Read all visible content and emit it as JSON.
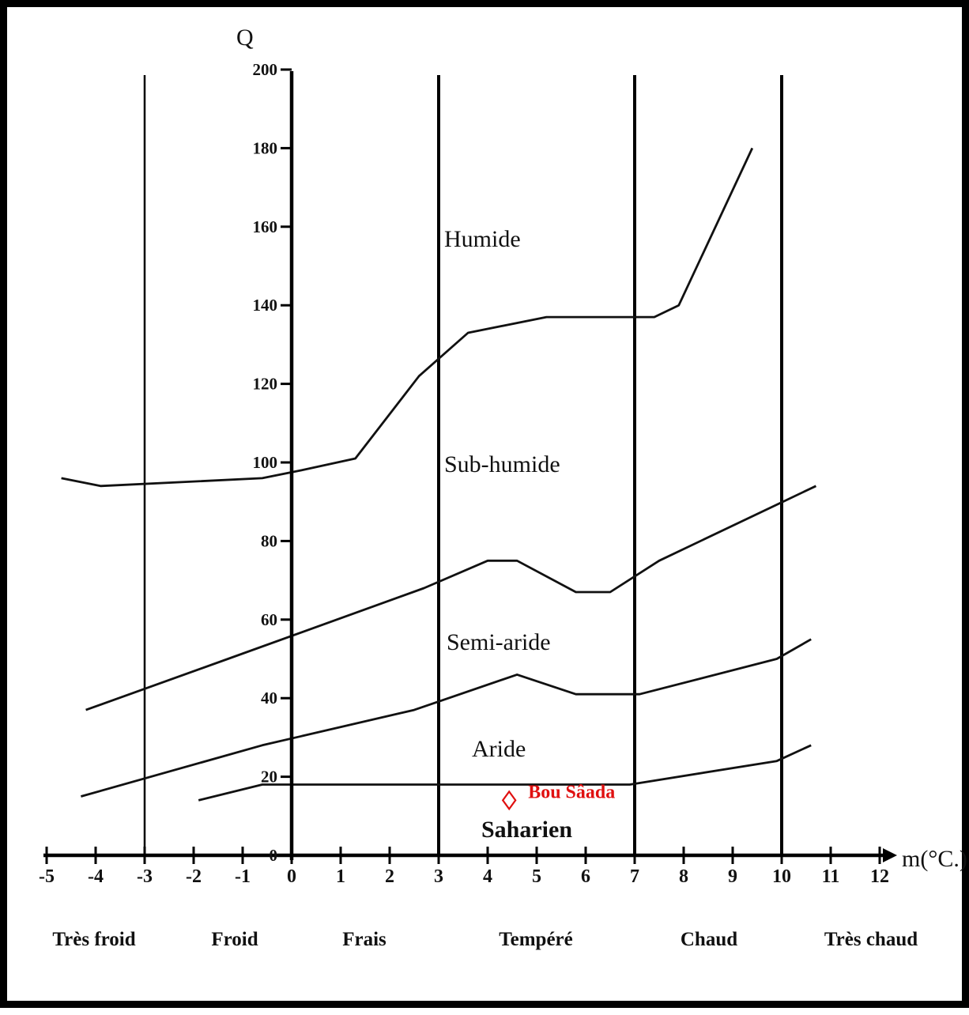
{
  "chart_data": {
    "type": "line",
    "ylabel": "Q",
    "xlabel": "m(°C.)",
    "xlim": [
      -5,
      12
    ],
    "ylim": [
      0,
      200
    ],
    "x_ticks": [
      -5,
      -4,
      -3,
      -2,
      -1,
      0,
      1,
      2,
      3,
      4,
      5,
      6,
      7,
      8,
      9,
      10,
      11,
      12
    ],
    "y_ticks": [
      0,
      20,
      40,
      60,
      80,
      100,
      120,
      140,
      160,
      180,
      200
    ],
    "vertical_lines": [
      -3,
      3,
      7,
      10
    ],
    "series": [
      {
        "points": [
          [
            -4.7,
            96
          ],
          [
            -3.9,
            94
          ],
          [
            -0.6,
            96
          ],
          [
            0.2,
            98
          ],
          [
            1.3,
            101
          ],
          [
            2.6,
            122
          ],
          [
            3.6,
            133
          ],
          [
            5.2,
            137
          ],
          [
            7.4,
            137
          ],
          [
            7.9,
            140
          ],
          [
            9.4,
            180
          ]
        ]
      },
      {
        "points": [
          [
            -4.2,
            37
          ],
          [
            -1.3,
            50
          ],
          [
            2.7,
            68
          ],
          [
            4.0,
            75
          ],
          [
            4.6,
            75
          ],
          [
            5.8,
            67
          ],
          [
            6.5,
            67
          ],
          [
            7.5,
            75
          ],
          [
            10.7,
            94
          ]
        ]
      },
      {
        "points": [
          [
            -4.3,
            15
          ],
          [
            -0.6,
            28
          ],
          [
            2.5,
            37
          ],
          [
            4.6,
            46
          ],
          [
            5.8,
            41
          ],
          [
            7.1,
            41
          ],
          [
            9.9,
            50
          ],
          [
            10.6,
            55
          ]
        ]
      },
      {
        "points": [
          [
            -1.9,
            14
          ],
          [
            -0.6,
            18
          ],
          [
            6.9,
            18
          ],
          [
            9.9,
            24
          ],
          [
            10.6,
            28
          ]
        ]
      }
    ],
    "zones": [
      "Humide",
      "Sub-humide",
      "Semi-aride",
      "Aride",
      "Saharien"
    ],
    "temperature_classes": [
      "Très froid",
      "Froid",
      "Frais",
      "Tempéré",
      "Chaud",
      "Très chaud"
    ],
    "marker": {
      "label": "Bou Sâada",
      "x": 4.6,
      "y": 12,
      "color": "#e01010"
    }
  }
}
